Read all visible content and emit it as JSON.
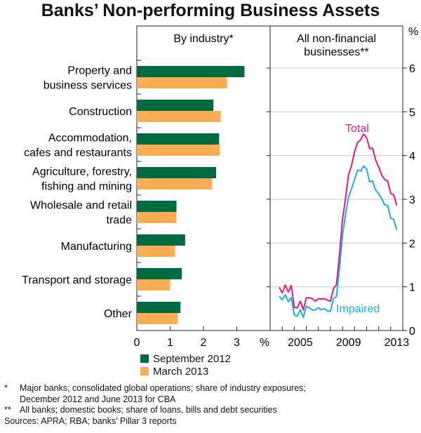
{
  "title": "Banks’ Non-performing Business Assets",
  "colors": {
    "september_2012": "#006b3f",
    "march_2013": "#f9ad55",
    "total": "#e6177f",
    "impaired": "#1eaaf1",
    "grid": "#c8c8c8"
  },
  "chart_data": [
    {
      "type": "bar",
      "orientation": "horizontal",
      "panel_title": "By industry*",
      "categories": [
        [
          "Property and",
          "business services"
        ],
        [
          "Construction"
        ],
        [
          "Accommodation,",
          "cafes and restaurants"
        ],
        [
          "Agriculture, forestry,",
          "fishing and mining"
        ],
        [
          "Wholesale and retail",
          "trade"
        ],
        [
          "Manufacturing"
        ],
        [
          "Transport and storage"
        ],
        [
          "Other"
        ]
      ],
      "series": [
        {
          "name": "September 2012",
          "values": [
            3.23,
            2.3,
            2.47,
            2.38,
            1.19,
            1.45,
            1.35,
            1.31
          ]
        },
        {
          "name": "March 2013",
          "values": [
            2.71,
            2.52,
            2.49,
            2.26,
            1.19,
            1.15,
            1.0,
            1.23
          ]
        }
      ],
      "xlim": [
        0,
        4
      ],
      "xticks": [
        "0",
        "1",
        "2",
        "3"
      ],
      "xunit": "%",
      "legend": "bottom-left"
    },
    {
      "type": "line",
      "panel_title": [
        "All non-financial",
        "businesses**"
      ],
      "x_start": 2003.75,
      "x_step": 0.25,
      "xlim": [
        2003,
        2014
      ],
      "xticks": [
        "2005",
        "2009",
        "2013"
      ],
      "ylim": [
        0,
        6
      ],
      "yticks": [
        "0",
        "1",
        "2",
        "3",
        "4",
        "5",
        "6"
      ],
      "yunit": "%",
      "yunit_left": "%",
      "grid": true,
      "series": [
        {
          "name": "Total",
          "values": [
            0.99,
            0.86,
            1.04,
            0.88,
            1.03,
            0.53,
            0.52,
            0.67,
            0.47,
            0.75,
            0.75,
            0.73,
            0.67,
            0.73,
            0.72,
            0.73,
            0.7,
            0.67,
            0.96,
            1.05,
            1.74,
            2.54,
            3.02,
            3.56,
            3.77,
            4.09,
            4.3,
            4.36,
            4.49,
            4.41,
            4.16,
            4.17,
            3.9,
            3.74,
            3.56,
            3.45,
            3.42,
            3.14,
            3.1,
            2.86
          ]
        },
        {
          "name": "Impaired",
          "values": [
            0.79,
            0.7,
            0.82,
            0.66,
            0.75,
            0.35,
            0.33,
            0.48,
            0.3,
            0.56,
            0.52,
            0.47,
            0.47,
            0.52,
            0.48,
            0.5,
            0.45,
            0.44,
            0.73,
            0.78,
            1.42,
            2.17,
            2.65,
            3.05,
            3.24,
            3.45,
            3.67,
            3.64,
            3.76,
            3.69,
            3.4,
            3.42,
            3.21,
            3.13,
            3.02,
            2.87,
            2.86,
            2.57,
            2.54,
            2.3
          ]
        }
      ]
    }
  ],
  "footnotes": [
    {
      "mark": "*",
      "lines": [
        "Major banks; consolidated global operations; share of industry exposures;",
        "December 2012 and June 2013 for CBA"
      ]
    },
    {
      "mark": "**",
      "lines": [
        "All banks; domestic books; share of loans, bills and debt securities"
      ]
    }
  ],
  "sources": "Sources: APRA; RBA; banks’ Pillar 3 reports"
}
